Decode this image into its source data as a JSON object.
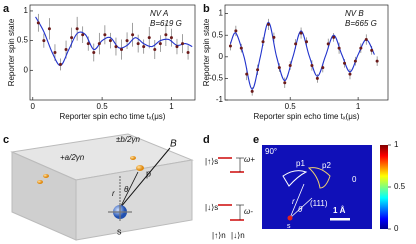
{
  "panel_labels": [
    "a",
    "b",
    "c",
    "d",
    "e"
  ],
  "chart_data": [
    {
      "type": "scatter",
      "annotations": [
        "NV A",
        "B=619 G"
      ],
      "ylabel": "Reporter spin state",
      "xlabel": "Reporter spin echo time tₓ(μs)",
      "xlim": [
        -0.02,
        1.17
      ],
      "ylim": [
        -0.5,
        1.1
      ],
      "xticks": [
        0,
        0.5,
        1
      ],
      "yticks": [
        0,
        0.5,
        1
      ],
      "color": "#6b1a1a",
      "error_color": "#777777",
      "x": [
        0.04,
        0.08,
        0.12,
        0.16,
        0.2,
        0.24,
        0.28,
        0.32,
        0.36,
        0.4,
        0.44,
        0.48,
        0.52,
        0.56,
        0.6,
        0.64,
        0.68,
        0.72,
        0.76,
        0.8,
        0.84,
        0.88,
        0.92,
        0.96,
        1.0,
        1.04,
        1.08,
        1.12
      ],
      "values": [
        0.8,
        0.5,
        0.7,
        0.3,
        0.1,
        0.35,
        0.55,
        0.7,
        0.6,
        0.45,
        0.3,
        0.45,
        0.6,
        0.5,
        0.4,
        0.35,
        0.5,
        0.6,
        0.45,
        0.4,
        0.55,
        0.35,
        0.45,
        0.6,
        0.55,
        0.4,
        0.45,
        0.3
      ],
      "errors": [
        0.15,
        0.12,
        0.18,
        0.14,
        0.1,
        0.15,
        0.17,
        0.2,
        0.14,
        0.12,
        0.15,
        0.18,
        0.16,
        0.13,
        0.15,
        0.17,
        0.14,
        0.2,
        0.15,
        0.12,
        0.18,
        0.16,
        0.14,
        0.19,
        0.15,
        0.13,
        0.16,
        0.12
      ],
      "fit": {
        "color": "#2233cc",
        "x": [
          0.02,
          0.08,
          0.14,
          0.2,
          0.26,
          0.32,
          0.38,
          0.44,
          0.5,
          0.56,
          0.62,
          0.68,
          0.74,
          0.8,
          0.86,
          0.92,
          0.98,
          1.04,
          1.1,
          1.15
        ],
        "values": [
          0.9,
          0.65,
          0.3,
          0.08,
          0.35,
          0.62,
          0.6,
          0.35,
          0.5,
          0.55,
          0.38,
          0.42,
          0.55,
          0.45,
          0.4,
          0.5,
          0.52,
          0.42,
          0.45,
          0.4
        ]
      }
    },
    {
      "type": "scatter",
      "annotations": [
        "NV B",
        "B=665 G"
      ],
      "ylabel": "Reporter spin state",
      "xlabel": "Reporter spin echo time tₓ(μs)",
      "xlim": [
        0.02,
        1.22
      ],
      "ylim": [
        -1,
        1.2
      ],
      "xticks": [
        0.5,
        1
      ],
      "yticks": [
        -1,
        -0.5,
        0,
        0.5,
        1
      ],
      "color": "#6b1a1a",
      "error_color": "#777777",
      "x": [
        0.06,
        0.1,
        0.14,
        0.18,
        0.22,
        0.26,
        0.3,
        0.34,
        0.38,
        0.42,
        0.46,
        0.5,
        0.54,
        0.58,
        0.62,
        0.66,
        0.7,
        0.74,
        0.78,
        0.82,
        0.86,
        0.9,
        0.94,
        0.98,
        1.02,
        1.06,
        1.1,
        1.14
      ],
      "values": [
        0.25,
        0.6,
        0.2,
        -0.4,
        -0.8,
        -0.3,
        0.35,
        0.75,
        0.45,
        -0.25,
        -0.6,
        -0.2,
        0.3,
        0.55,
        0.35,
        -0.2,
        -0.5,
        -0.25,
        0.3,
        0.45,
        0.2,
        -0.15,
        -0.4,
        -0.1,
        0.2,
        0.4,
        0.15,
        -0.1
      ],
      "errors": [
        0.1,
        0.12,
        0.1,
        0.14,
        0.1,
        0.12,
        0.1,
        0.13,
        0.11,
        0.1,
        0.12,
        0.1,
        0.11,
        0.13,
        0.1,
        0.12,
        0.1,
        0.11,
        0.12,
        0.1,
        0.13,
        0.1,
        0.12,
        0.1,
        0.11,
        0.12,
        0.1,
        0.11
      ],
      "fit": {
        "color": "#2233cc",
        "x": [
          0.06,
          0.1,
          0.16,
          0.22,
          0.28,
          0.34,
          0.4,
          0.46,
          0.52,
          0.58,
          0.64,
          0.7,
          0.76,
          0.82,
          0.88,
          0.94,
          1.0,
          1.06,
          1.12
        ],
        "values": [
          0.3,
          0.55,
          0,
          -0.75,
          0,
          0.8,
          0,
          -0.55,
          0,
          0.6,
          0.02,
          -0.45,
          0.02,
          0.5,
          0.05,
          -0.35,
          0.05,
          0.4,
          0.05
        ]
      }
    }
  ],
  "panel_c": {
    "a_label": "+a/2γn",
    "b_label": "±b/2γn",
    "field": "B",
    "r": "r",
    "theta": "θ",
    "p": "p",
    "s": "s"
  },
  "panel_d": {
    "up_s": "|↑⟩s",
    "down_s": "|↓⟩s",
    "omega_plus": "ω+",
    "omega_minus": "ω-",
    "up_n": "|↑⟩n",
    "down_n": "|↓⟩n"
  },
  "panel_e": {
    "angle": "90°",
    "p1": "p1",
    "p2": "p2",
    "zero": "0",
    "r": "r",
    "theta": "θ",
    "direction": "(111)",
    "s": "s",
    "scale": "1 Å",
    "colorbar": {
      "clim": [
        0,
        1
      ],
      "ticks": [
        0,
        0.5,
        1
      ]
    }
  }
}
